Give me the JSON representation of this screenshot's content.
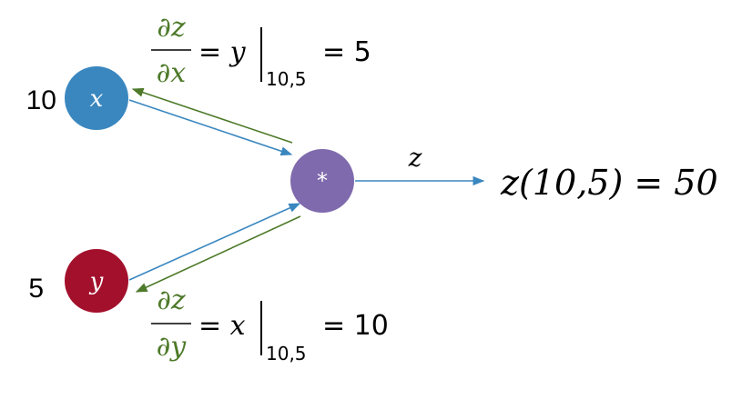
{
  "colors": {
    "x_node": "#3a87c0",
    "y_node": "#a3102c",
    "op_node": "#7f6aad",
    "forward_arrow": "#3a87c0",
    "backward_arrow": "#4e7a2a",
    "derivative_text": "#4e7a2a"
  },
  "nodes": {
    "x": {
      "label": "x",
      "value": "10"
    },
    "y": {
      "label": "y",
      "value": "5"
    },
    "op": {
      "label": "*"
    }
  },
  "output": {
    "edge_label": "z",
    "result": "z(10,5) = 50"
  },
  "gradients": {
    "dz_dx": {
      "numerator": "∂z",
      "denominator": "∂x",
      "rhs": "= y",
      "eval_at": "10,5",
      "result": "= 5"
    },
    "dz_dy": {
      "numerator": "∂z",
      "denominator": "∂y",
      "rhs": "= x",
      "eval_at": "10,5",
      "result": "= 10"
    }
  }
}
